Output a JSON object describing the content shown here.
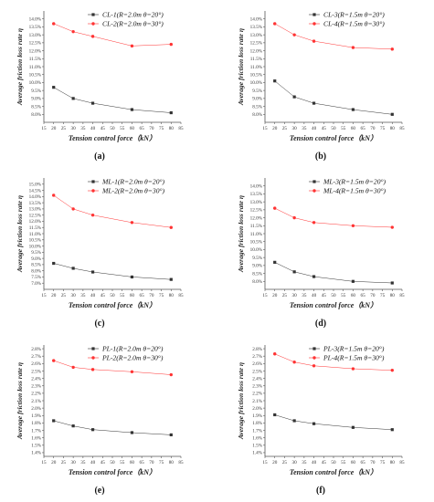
{
  "chart_data": [
    {
      "type": "line",
      "caption": "(a)",
      "xlabel": "Tension control force（kN）",
      "ylabel": "Average friction loss rate η",
      "x": [
        20,
        30,
        40,
        60,
        80
      ],
      "xlim": [
        15,
        85
      ],
      "xticks": [
        "15",
        "20",
        "25",
        "30",
        "35",
        "40",
        "45",
        "50",
        "55",
        "60",
        "65",
        "70",
        "75",
        "80",
        "85"
      ],
      "ylim": [
        7.5,
        14.5
      ],
      "yticks": [
        "8.0%",
        "8.5%",
        "9.0%",
        "9.5%",
        "10.0%",
        "10.5%",
        "11.0%",
        "11.5%",
        "12.0%",
        "12.5%",
        "13.0%",
        "13.5%",
        "14.0%"
      ],
      "series": [
        {
          "name": "CL-1(R=2.0m θ=20°)",
          "color": "#333333",
          "marker": "square",
          "values": [
            9.7,
            9.0,
            8.7,
            8.3,
            8.1
          ]
        },
        {
          "name": "CL-2(R=2.0m θ=30°)",
          "color": "#ff3333",
          "marker": "circle",
          "values": [
            13.7,
            13.2,
            12.9,
            12.3,
            12.4
          ]
        }
      ]
    },
    {
      "type": "line",
      "caption": "(b)",
      "xlabel": "Tension control force（kN）",
      "ylabel": "Average friction loss rate η",
      "x": [
        20,
        30,
        40,
        60,
        80
      ],
      "xlim": [
        15,
        85
      ],
      "xticks": [
        "15",
        "20",
        "25",
        "30",
        "35",
        "40",
        "45",
        "50",
        "55",
        "60",
        "65",
        "70",
        "75",
        "80",
        "85"
      ],
      "ylim": [
        7.5,
        14.5
      ],
      "yticks": [
        "8.0%",
        "8.5%",
        "9.0%",
        "9.5%",
        "10.0%",
        "10.5%",
        "11.0%",
        "11.5%",
        "12.0%",
        "12.5%",
        "13.0%",
        "13.5%",
        "14.0%"
      ],
      "series": [
        {
          "name": "CL-3(R=1.5m θ=20°)",
          "color": "#333333",
          "marker": "square",
          "values": [
            10.1,
            9.1,
            8.7,
            8.3,
            8.0
          ]
        },
        {
          "name": "CL-4(R=1.5m θ=30°)",
          "color": "#ff3333",
          "marker": "circle",
          "values": [
            13.7,
            13.0,
            12.6,
            12.2,
            12.1
          ]
        }
      ]
    },
    {
      "type": "line",
      "caption": "(c)",
      "xlabel": "Tension control force（kN）",
      "ylabel": "Average friction loss rate η",
      "x": [
        20,
        30,
        40,
        60,
        80
      ],
      "xlim": [
        15,
        85
      ],
      "xticks": [
        "15",
        "20",
        "25",
        "30",
        "35",
        "40",
        "45",
        "50",
        "55",
        "60",
        "65",
        "70",
        "75",
        "80",
        "85"
      ],
      "ylim": [
        6.5,
        15.5
      ],
      "yticks": [
        "7.0%",
        "7.5%",
        "8.0%",
        "8.5%",
        "9.0%",
        "9.5%",
        "10.0%",
        "10.5%",
        "11.0%",
        "11.5%",
        "12.0%",
        "12.5%",
        "13.0%",
        "13.5%",
        "14.0%",
        "14.5%",
        "15.0%"
      ],
      "series": [
        {
          "name": "ML-1(R=2.0m θ=20°)",
          "color": "#333333",
          "marker": "square",
          "values": [
            8.6,
            8.2,
            7.9,
            7.5,
            7.3
          ]
        },
        {
          "name": "ML-2(R=2.0m θ=30°)",
          "color": "#ff3333",
          "marker": "circle",
          "values": [
            14.1,
            13.0,
            12.5,
            11.9,
            11.5
          ]
        }
      ]
    },
    {
      "type": "line",
      "caption": "(d)",
      "xlabel": "Tension control force（kN）",
      "ylabel": "Average friction loss rate η",
      "x": [
        20,
        30,
        40,
        60,
        80
      ],
      "xlim": [
        15,
        85
      ],
      "xticks": [
        "15",
        "20",
        "25",
        "30",
        "35",
        "40",
        "45",
        "50",
        "55",
        "60",
        "65",
        "70",
        "75",
        "80",
        "85"
      ],
      "ylim": [
        7.5,
        14.5
      ],
      "yticks": [
        "8.0%",
        "8.5%",
        "9.0%",
        "9.5%",
        "10.0%",
        "10.5%",
        "11.0%",
        "11.5%",
        "12.0%",
        "12.5%",
        "13.0%",
        "13.5%",
        "14.0%"
      ],
      "series": [
        {
          "name": "ML-3(R=1.5m θ=20°)",
          "color": "#333333",
          "marker": "square",
          "values": [
            9.2,
            8.6,
            8.3,
            8.0,
            7.9
          ]
        },
        {
          "name": "ML-4(R=1.5m θ=30°)",
          "color": "#ff3333",
          "marker": "circle",
          "values": [
            12.6,
            12.0,
            11.7,
            11.5,
            11.4
          ]
        }
      ]
    },
    {
      "type": "line",
      "caption": "(e)",
      "xlabel": "Tension control force（kN）",
      "ylabel": "Average friction loss rate η",
      "x": [
        20,
        30,
        40,
        60,
        80
      ],
      "xlim": [
        15,
        85
      ],
      "xticks": [
        "15",
        "20",
        "25",
        "30",
        "35",
        "40",
        "45",
        "50",
        "55",
        "60",
        "65",
        "70",
        "75",
        "80",
        "85"
      ],
      "ylim": [
        1.35,
        2.85
      ],
      "yticks": [
        "1.4%",
        "1.5%",
        "1.6%",
        "1.7%",
        "1.8%",
        "1.9%",
        "2.0%",
        "2.1%",
        "2.2%",
        "2.3%",
        "2.4%",
        "2.5%",
        "2.6%",
        "2.7%",
        "2.8%"
      ],
      "series": [
        {
          "name": "PL-1(R=2.0m θ=20°)",
          "color": "#333333",
          "marker": "square",
          "values": [
            1.83,
            1.76,
            1.71,
            1.67,
            1.64
          ]
        },
        {
          "name": "PL-2(R=2.0m θ=30°)",
          "color": "#ff3333",
          "marker": "circle",
          "values": [
            2.64,
            2.55,
            2.52,
            2.49,
            2.45
          ]
        }
      ]
    },
    {
      "type": "line",
      "caption": "(f)",
      "xlabel": "Tension control force（kN）",
      "ylabel": "Average friction loss rate η",
      "x": [
        20,
        30,
        40,
        60,
        80
      ],
      "xlim": [
        15,
        85
      ],
      "xticks": [
        "15",
        "20",
        "25",
        "30",
        "35",
        "40",
        "45",
        "50",
        "55",
        "60",
        "65",
        "70",
        "75",
        "80",
        "85"
      ],
      "ylim": [
        1.35,
        2.85
      ],
      "yticks": [
        "1.4%",
        "1.5%",
        "1.6%",
        "1.7%",
        "1.8%",
        "1.9%",
        "2.0%",
        "2.1%",
        "2.2%",
        "2.3%",
        "2.4%",
        "2.5%",
        "2.6%",
        "2.7%",
        "2.8%"
      ],
      "series": [
        {
          "name": "PL-3(R=1.5m θ=20°)",
          "color": "#333333",
          "marker": "square",
          "values": [
            1.91,
            1.83,
            1.79,
            1.74,
            1.71
          ]
        },
        {
          "name": "PL-4(R=1.5m θ=30°)",
          "color": "#ff3333",
          "marker": "circle",
          "values": [
            2.73,
            2.62,
            2.57,
            2.53,
            2.51
          ]
        }
      ]
    }
  ]
}
